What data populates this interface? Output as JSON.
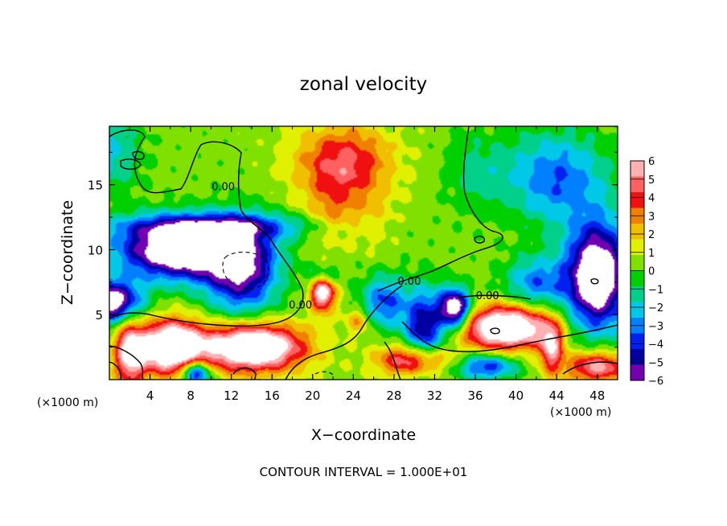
{
  "chart_data": {
    "type": "heatmap",
    "title": "zonal velocity",
    "xlabel": "X−coordinate",
    "ylabel": "Z−coordinate",
    "x_unit_left": "(×1000 m)",
    "x_unit_right": "(×1000 m)",
    "xlim": [
      0,
      50
    ],
    "ylim": [
      0,
      19.5
    ],
    "x_ticks": [
      4,
      8,
      12,
      16,
      20,
      24,
      28,
      32,
      36,
      40,
      44,
      48
    ],
    "y_ticks": [
      5,
      10,
      15
    ],
    "colorbar": {
      "range": [
        -6,
        6
      ],
      "tick_labels": [
        "6",
        "5",
        "4",
        "3",
        "2",
        "1",
        "0",
        "−1",
        "−2",
        "−3",
        "−4",
        "−5",
        "−6"
      ],
      "colors": [
        "#ffb0b0",
        "#ff6060",
        "#f01010",
        "#f08000",
        "#f0c000",
        "#e0f000",
        "#80e000",
        "#00d000",
        "#00d08a",
        "#00c8e6",
        "#0080ff",
        "#0020f0",
        "#0000a0",
        "#7000b0"
      ]
    },
    "contour_labels": [
      {
        "text": "0.00",
        "x": 11.2,
        "z": 14.9
      },
      {
        "text": "0.00",
        "x": 18.8,
        "z": 5.8
      },
      {
        "text": "0.00",
        "x": 29.5,
        "z": 7.6
      },
      {
        "text": "0.00",
        "x": 37.2,
        "z": 6.5
      }
    ],
    "footer": "CONTOUR INTERVAL = 1.000E+01"
  }
}
